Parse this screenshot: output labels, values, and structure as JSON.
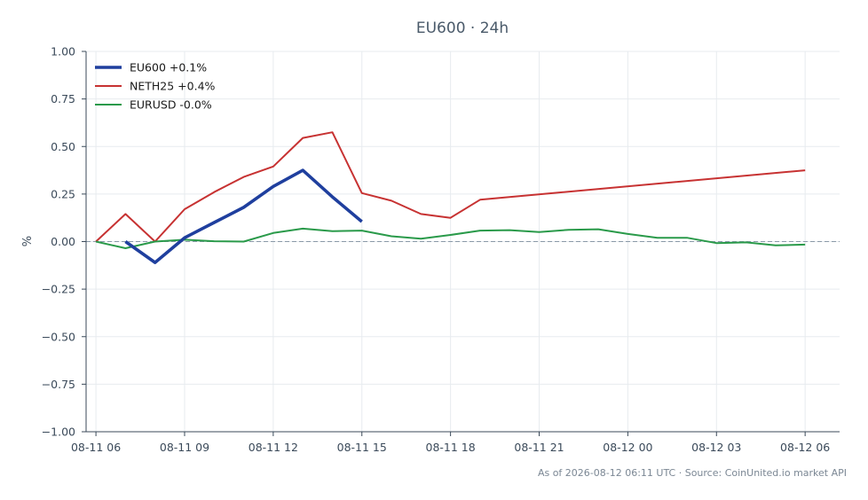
{
  "chart_data": {
    "type": "line",
    "title": "EU600 · 24h",
    "ylabel": "%",
    "xlabel": "",
    "ylim": [
      -1.0,
      1.0
    ],
    "xlim": [
      "2026-08-11 05:40",
      "2026-08-12 07:10"
    ],
    "yticks": [
      "1.00",
      "0.75",
      "0.50",
      "0.25",
      "0.00",
      "−0.25",
      "−0.50",
      "−0.75",
      "−1.00"
    ],
    "ytick_values": [
      1.0,
      0.75,
      0.5,
      0.25,
      0.0,
      -0.25,
      -0.5,
      -0.75,
      -1.0
    ],
    "xticks": [
      "08-11 06",
      "08-11 09",
      "08-11 12",
      "08-11 15",
      "08-11 18",
      "08-11 21",
      "08-12 00",
      "08-12 03",
      "08-12 06"
    ],
    "xtick_values": [
      "2026-08-11 06:00",
      "2026-08-11 09:00",
      "2026-08-11 12:00",
      "2026-08-11 15:00",
      "2026-08-11 18:00",
      "2026-08-11 21:00",
      "2026-08-12 00:00",
      "2026-08-12 03:00",
      "2026-08-12 06:00"
    ],
    "grid": true,
    "zero_line": true,
    "legend_position": "top-left",
    "series": [
      {
        "name": "EU600 +0.1%",
        "color": "#1f3f9e",
        "width": "thick",
        "x": [
          "2026-08-11 07:00",
          "2026-08-11 08:00",
          "2026-08-11 09:00",
          "2026-08-11 10:00",
          "2026-08-11 11:00",
          "2026-08-11 12:00",
          "2026-08-11 13:00",
          "2026-08-11 14:00",
          "2026-08-11 15:00"
        ],
        "y": [
          0.0,
          -0.11,
          0.02,
          0.1,
          0.18,
          0.29,
          0.375,
          0.235,
          0.105
        ]
      },
      {
        "name": "NETH25 +0.4%",
        "color": "#c73232",
        "width": "normal",
        "x": [
          "2026-08-11 06:00",
          "2026-08-11 07:00",
          "2026-08-11 08:00",
          "2026-08-11 09:00",
          "2026-08-11 10:00",
          "2026-08-11 11:00",
          "2026-08-11 12:00",
          "2026-08-11 13:00",
          "2026-08-11 14:00",
          "2026-08-11 15:00",
          "2026-08-11 16:00",
          "2026-08-11 17:00",
          "2026-08-11 18:00",
          "2026-08-11 19:00",
          "2026-08-12 06:00"
        ],
        "y": [
          0.0,
          0.145,
          0.0,
          0.17,
          0.26,
          0.34,
          0.395,
          0.545,
          0.575,
          0.255,
          0.215,
          0.145,
          0.125,
          0.22,
          0.375
        ]
      },
      {
        "name": "EURUSD -0.0%",
        "color": "#2a9a4a",
        "width": "normal",
        "x": [
          "2026-08-11 06:00",
          "2026-08-11 07:00",
          "2026-08-11 08:00",
          "2026-08-11 09:00",
          "2026-08-11 10:00",
          "2026-08-11 11:00",
          "2026-08-11 12:00",
          "2026-08-11 13:00",
          "2026-08-11 14:00",
          "2026-08-11 15:00",
          "2026-08-11 16:00",
          "2026-08-11 17:00",
          "2026-08-11 18:00",
          "2026-08-11 19:00",
          "2026-08-11 20:00",
          "2026-08-11 21:00",
          "2026-08-11 22:00",
          "2026-08-11 23:00",
          "2026-08-12 00:00",
          "2026-08-12 01:00",
          "2026-08-12 02:00",
          "2026-08-12 03:00",
          "2026-08-12 04:00",
          "2026-08-12 05:00",
          "2026-08-12 06:00"
        ],
        "y": [
          0.0,
          -0.035,
          0.0,
          0.01,
          0.002,
          0.0,
          0.045,
          0.068,
          0.055,
          0.058,
          0.028,
          0.015,
          0.035,
          0.058,
          0.06,
          0.05,
          0.062,
          0.065,
          0.04,
          0.02,
          0.02,
          -0.008,
          -0.004,
          -0.02,
          -0.016
        ]
      }
    ],
    "footer": "As of 2026-08-12 06:11 UTC · Source: CoinUnited.io market API"
  }
}
